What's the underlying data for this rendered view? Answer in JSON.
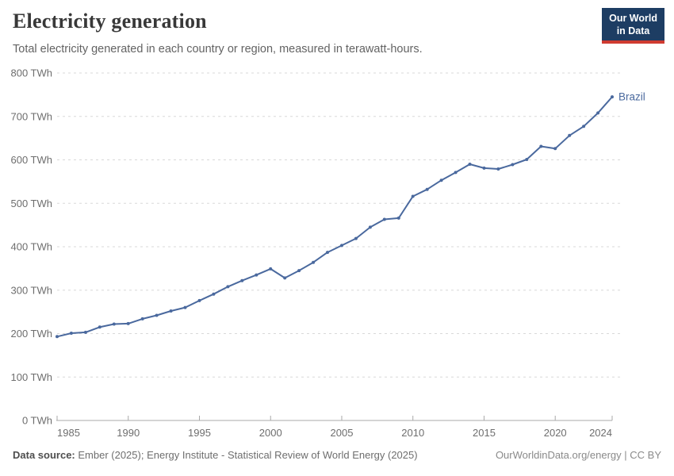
{
  "header": {
    "title": "Electricity generation",
    "subtitle": "Total electricity generated in each country or region, measured in terawatt-hours."
  },
  "logo": {
    "line1": "Our World",
    "line2": "in Data",
    "bg_color": "#1d3d63",
    "accent_color": "#cf3b31"
  },
  "chart_data": {
    "type": "line",
    "title": "Electricity generation",
    "unit": "TWh",
    "xlim": [
      1985,
      2024
    ],
    "ylim": [
      0,
      800
    ],
    "yticks": [
      0,
      100,
      200,
      300,
      400,
      500,
      600,
      700,
      800
    ],
    "xticks": [
      1985,
      1990,
      1995,
      2000,
      2005,
      2010,
      2015,
      2020,
      2024
    ],
    "grid": "dashed-horizontal",
    "legend_position": "end-of-line-label",
    "series": [
      {
        "name": "Brazil",
        "color": "#4a699e",
        "x": [
          1985,
          1986,
          1987,
          1988,
          1989,
          1990,
          1991,
          1992,
          1993,
          1994,
          1995,
          1996,
          1997,
          1998,
          1999,
          2000,
          2001,
          2002,
          2003,
          2004,
          2005,
          2006,
          2007,
          2008,
          2009,
          2010,
          2011,
          2012,
          2013,
          2014,
          2015,
          2016,
          2017,
          2018,
          2019,
          2020,
          2021,
          2022,
          2023,
          2024
        ],
        "values": [
          193,
          201,
          203,
          215,
          222,
          223,
          234,
          242,
          252,
          260,
          276,
          291,
          308,
          322,
          335,
          349,
          328,
          345,
          364,
          387,
          403,
          419,
          445,
          463,
          466,
          516,
          532,
          553,
          571,
          590,
          581,
          579,
          589,
          601,
          631,
          626,
          656,
          677,
          708,
          745
        ]
      }
    ],
    "style": {
      "grid_color": "#d8d8d8",
      "axis_color": "#a9a9a9",
      "tick_label_color": "#6e6e6e"
    }
  },
  "footer": {
    "source_label": "Data source:",
    "source_text": " Ember (2025); Energy Institute - Statistical Review of World Energy (2025)",
    "right_text": "OurWorldinData.org/energy | CC BY"
  }
}
